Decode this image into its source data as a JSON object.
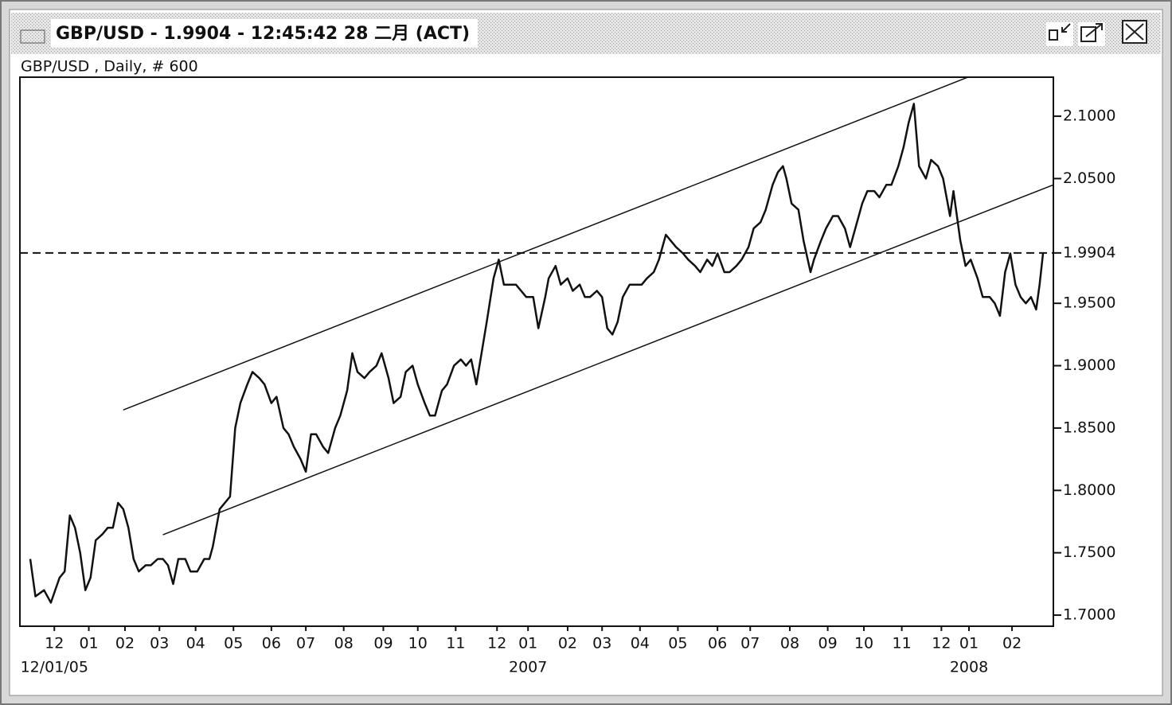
{
  "window": {
    "title": "GBP/USD - 1.9904 - 12:45:42  28 二月 (ACT)"
  },
  "chart_data": {
    "type": "line",
    "subtitle": "GBP/USD , Daily, # 600",
    "xlim": [
      0,
      600
    ],
    "ylim": [
      1.6911,
      2.1313
    ],
    "yticks": [
      {
        "value": 1.7,
        "label": "1.7000"
      },
      {
        "value": 1.75,
        "label": "1.7500"
      },
      {
        "value": 1.8,
        "label": "1.8000"
      },
      {
        "value": 1.85,
        "label": "1.8500"
      },
      {
        "value": 1.9,
        "label": "1.9000"
      },
      {
        "value": 1.95,
        "label": "1.9500"
      },
      {
        "value": 1.9904,
        "label": "1.9904"
      },
      {
        "value": 2.05,
        "label": "2.0500"
      },
      {
        "value": 2.1,
        "label": "2.1000"
      }
    ],
    "xticks": [
      {
        "value": 20,
        "label": "12"
      },
      {
        "value": 40,
        "label": "01"
      },
      {
        "value": 61,
        "label": "02"
      },
      {
        "value": 81,
        "label": "03"
      },
      {
        "value": 102,
        "label": "04"
      },
      {
        "value": 124,
        "label": "05"
      },
      {
        "value": 146,
        "label": "06"
      },
      {
        "value": 166,
        "label": "07"
      },
      {
        "value": 188,
        "label": "08"
      },
      {
        "value": 211,
        "label": "09"
      },
      {
        "value": 231,
        "label": "10"
      },
      {
        "value": 253,
        "label": "11"
      },
      {
        "value": 277,
        "label": "12"
      },
      {
        "value": 295,
        "label": "01"
      },
      {
        "value": 318,
        "label": "02"
      },
      {
        "value": 338,
        "label": "03"
      },
      {
        "value": 360,
        "label": "04"
      },
      {
        "value": 382,
        "label": "05"
      },
      {
        "value": 405,
        "label": "06"
      },
      {
        "value": 424,
        "label": "07"
      },
      {
        "value": 447,
        "label": "08"
      },
      {
        "value": 469,
        "label": "09"
      },
      {
        "value": 490,
        "label": "10"
      },
      {
        "value": 512,
        "label": "11"
      },
      {
        "value": 535,
        "label": "12"
      },
      {
        "value": 551,
        "label": "01"
      },
      {
        "value": 576,
        "label": "02"
      }
    ],
    "xticks_major": [
      {
        "value": 20,
        "label": "12/01/05"
      },
      {
        "value": 295,
        "label": "2007"
      },
      {
        "value": 551,
        "label": "2008"
      }
    ],
    "hline": 1.9904,
    "series": [
      {
        "name": "GBP/USD",
        "color": "#111111",
        "x": [
          6,
          9,
          14,
          18,
          23,
          26,
          29,
          32,
          35,
          38,
          41,
          44,
          48,
          51,
          54,
          57,
          60,
          63,
          66,
          69,
          73,
          76,
          80,
          83,
          86,
          89,
          92,
          96,
          99,
          103,
          107,
          110,
          112,
          116,
          119,
          122,
          125,
          128,
          132,
          135,
          139,
          142,
          146,
          149,
          153,
          156,
          159,
          163,
          166,
          169,
          172,
          176,
          179,
          183,
          186,
          190,
          193,
          196,
          200,
          203,
          207,
          210,
          214,
          217,
          221,
          224,
          228,
          231,
          235,
          238,
          241,
          245,
          248,
          252,
          256,
          259,
          262,
          265,
          268,
          271,
          275,
          278,
          281,
          284,
          288,
          291,
          294,
          298,
          301,
          305,
          307,
          311,
          314,
          318,
          321,
          325,
          328,
          331,
          335,
          338,
          341,
          344,
          347,
          350,
          354,
          357,
          361,
          364,
          368,
          371,
          375,
          378,
          381,
          385,
          388,
          392,
          395,
          399,
          402,
          405,
          409,
          412,
          416,
          419,
          423,
          426,
          430,
          433,
          437,
          440,
          443,
          445,
          448,
          452,
          455,
          459,
          461,
          465,
          468,
          472,
          475,
          479,
          482,
          486,
          489,
          492,
          496,
          499,
          503,
          506,
          510,
          513,
          516,
          519,
          522,
          526,
          529,
          533,
          536,
          540,
          542,
          546,
          549,
          552,
          556,
          559,
          563,
          566,
          569,
          572,
          575,
          578,
          581,
          584,
          587,
          590,
          592,
          594
        ],
        "values": [
          1.745,
          1.715,
          1.72,
          1.71,
          1.73,
          1.735,
          1.78,
          1.77,
          1.75,
          1.72,
          1.73,
          1.76,
          1.765,
          1.77,
          1.77,
          1.79,
          1.785,
          1.77,
          1.745,
          1.735,
          1.74,
          1.74,
          1.745,
          1.745,
          1.74,
          1.725,
          1.745,
          1.745,
          1.735,
          1.735,
          1.745,
          1.745,
          1.755,
          1.785,
          1.79,
          1.795,
          1.85,
          1.87,
          1.885,
          1.895,
          1.89,
          1.885,
          1.87,
          1.875,
          1.85,
          1.845,
          1.835,
          1.825,
          1.815,
          1.845,
          1.845,
          1.835,
          1.83,
          1.85,
          1.86,
          1.88,
          1.91,
          1.895,
          1.89,
          1.895,
          1.9,
          1.91,
          1.89,
          1.87,
          1.875,
          1.895,
          1.9,
          1.885,
          1.87,
          1.86,
          1.86,
          1.88,
          1.885,
          1.9,
          1.905,
          1.9,
          1.905,
          1.885,
          1.91,
          1.935,
          1.97,
          1.985,
          1.965,
          1.965,
          1.965,
          1.96,
          1.955,
          1.955,
          1.93,
          1.955,
          1.97,
          1.98,
          1.965,
          1.97,
          1.96,
          1.965,
          1.955,
          1.955,
          1.96,
          1.955,
          1.93,
          1.925,
          1.935,
          1.955,
          1.965,
          1.965,
          1.965,
          1.97,
          1.975,
          1.985,
          2.005,
          2.0,
          1.995,
          1.99,
          1.985,
          1.98,
          1.975,
          1.985,
          1.98,
          1.99,
          1.975,
          1.975,
          1.98,
          1.985,
          1.995,
          2.01,
          2.015,
          2.025,
          2.045,
          2.055,
          2.06,
          2.05,
          2.03,
          2.025,
          2.0,
          1.975,
          1.985,
          2.0,
          2.01,
          2.02,
          2.02,
          2.01,
          1.995,
          2.015,
          2.03,
          2.04,
          2.04,
          2.035,
          2.045,
          2.045,
          2.06,
          2.075,
          2.095,
          2.11,
          2.06,
          2.05,
          2.065,
          2.06,
          2.05,
          2.02,
          2.04,
          2.0,
          1.98,
          1.985,
          1.97,
          1.955,
          1.955,
          1.95,
          1.94,
          1.975,
          1.99,
          1.965,
          1.955,
          1.95,
          1.955,
          1.945,
          1.965,
          1.99
        ]
      }
    ],
    "trendlines": [
      {
        "x": [
          60,
          550
        ],
        "values": [
          1.8645,
          2.1311
        ]
      },
      {
        "x": [
          83,
          600
        ],
        "values": [
          1.7644,
          2.045
        ]
      }
    ]
  }
}
